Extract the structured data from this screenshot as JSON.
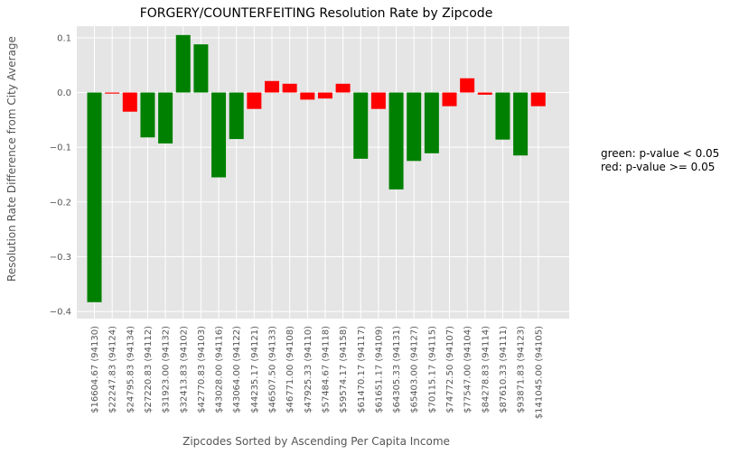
{
  "chart_data": {
    "type": "bar",
    "title": "FORGERY/COUNTERFEITING Resolution Rate by Zipcode",
    "xlabel": "Zipcodes Sorted by Ascending Per Capita Income",
    "ylabel": "Resolution Rate Difference from City Average",
    "ylim": [
      -0.41,
      0.125
    ],
    "yticks": [
      0.1,
      0.0,
      -0.1,
      -0.2,
      -0.3,
      -0.4
    ],
    "ytick_labels": [
      "0.1",
      "0.0",
      "−0.1",
      "−0.2",
      "−0.3",
      "−0.4"
    ],
    "grid": true,
    "colors": {
      "significant": "#008000",
      "not_significant": "#ff0000",
      "plot_bg": "#e5e5e5",
      "grid": "#ffffff"
    },
    "categories": [
      "$16604.67 (94130)",
      "$22247.83 (94124)",
      "$24795.83 (94134)",
      "$27220.83 (94112)",
      "$31923.00 (94132)",
      "$32413.83 (94102)",
      "$42770.83 (94103)",
      "$43028.00 (94116)",
      "$43064.00 (94122)",
      "$44235.17 (94121)",
      "$46507.50 (94133)",
      "$46771.00 (94108)",
      "$47925.33 (94110)",
      "$57484.67 (94118)",
      "$59574.17 (94158)",
      "$61470.17 (94117)",
      "$61651.17 (94109)",
      "$64305.33 (94131)",
      "$65403.00 (94127)",
      "$70115.17 (94115)",
      "$74772.50 (94107)",
      "$77547.00 (94104)",
      "$84278.83 (94114)",
      "$87610.33 (94111)",
      "$93871.83 (94123)",
      "$141045.00 (94105)"
    ],
    "values": [
      -0.383,
      -0.002,
      -0.035,
      -0.082,
      -0.093,
      0.105,
      0.088,
      -0.155,
      -0.085,
      -0.03,
      0.021,
      0.016,
      -0.013,
      -0.011,
      0.016,
      -0.121,
      -0.03,
      -0.177,
      -0.125,
      -0.111,
      -0.025,
      0.026,
      -0.004,
      -0.086,
      -0.115,
      -0.025
    ],
    "significant": [
      true,
      false,
      false,
      true,
      true,
      true,
      true,
      true,
      true,
      false,
      false,
      false,
      false,
      false,
      false,
      true,
      false,
      true,
      true,
      true,
      false,
      false,
      false,
      true,
      true,
      false
    ],
    "legend_text": [
      "green: p-value < 0.05",
      "red: p-value >= 0.05"
    ],
    "legend_placement": "right"
  }
}
